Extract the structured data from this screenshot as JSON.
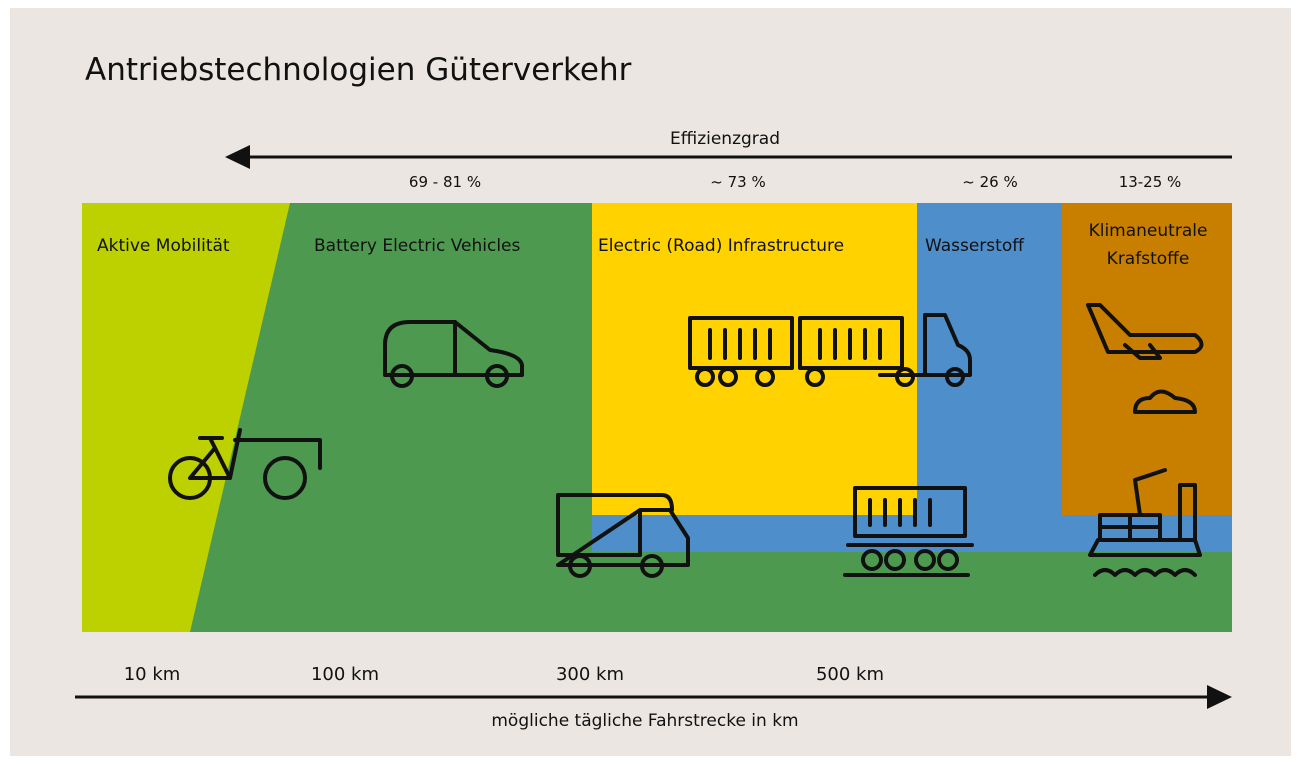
{
  "title": "Antriebstechnologien Güterverkehr",
  "efficiency": {
    "label": "Effizienzgrad",
    "values": [
      "69 - 81 %",
      "~ 73 %",
      "~ 26 %",
      "13-25 %"
    ]
  },
  "zones": [
    {
      "label": "Aktive Mobilität"
    },
    {
      "label": "Battery Electric Vehicles"
    },
    {
      "label": "Electric (Road) Infrastructure"
    },
    {
      "label": "Wasserstoff"
    },
    {
      "label": [
        "Klimaneutrale",
        "Krafstoffe"
      ]
    }
  ],
  "distance": {
    "label": "mögliche tägliche Fahrstrecke in km",
    "ticks": [
      "10 km",
      "100 km",
      "300 km",
      "500 km"
    ]
  }
}
